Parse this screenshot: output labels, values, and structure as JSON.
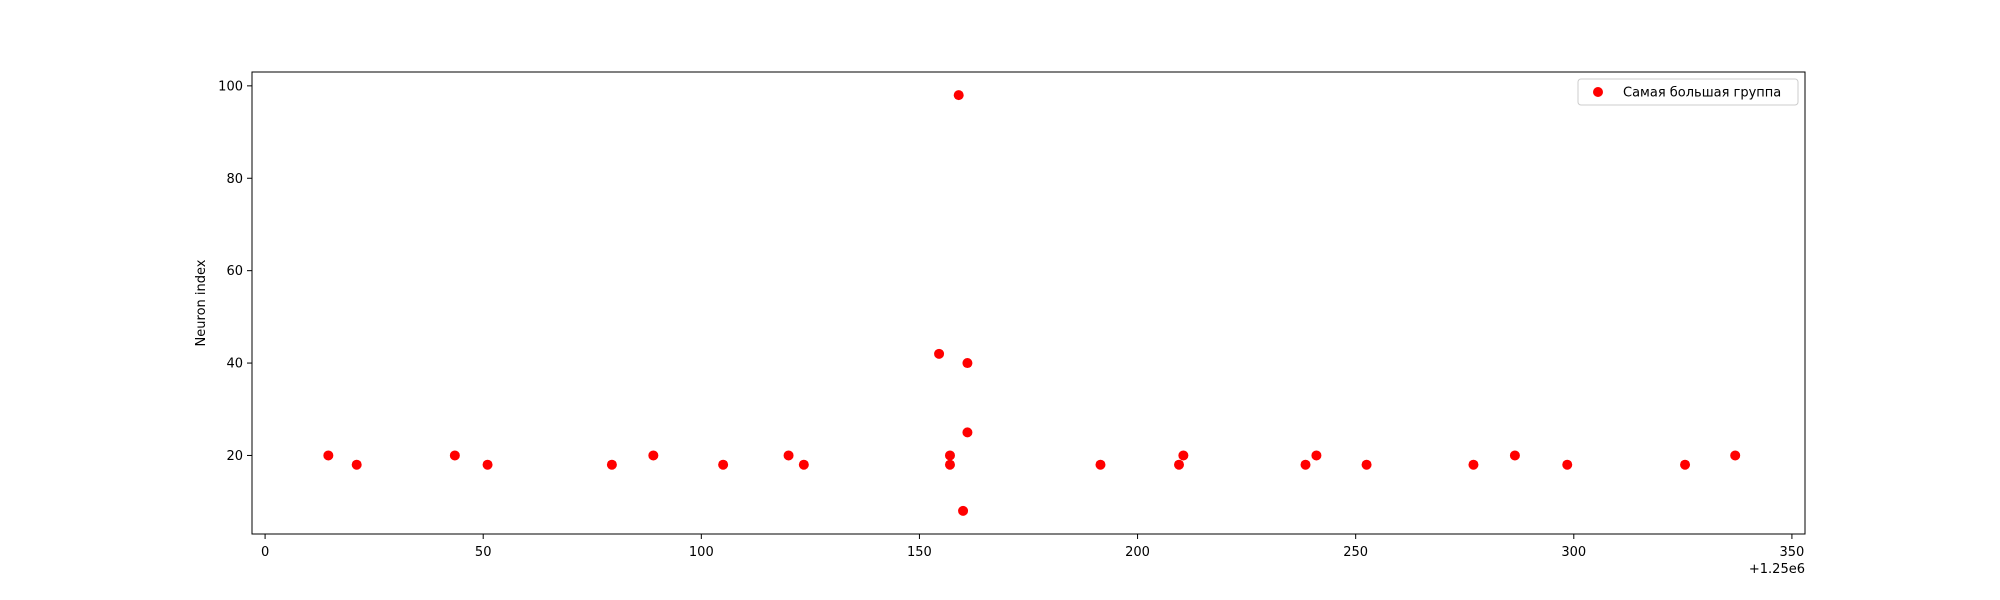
{
  "chart_data": {
    "type": "scatter",
    "title": "",
    "xlabel": "",
    "ylabel": "Neuron index",
    "x_offset_label": "+1.25e6",
    "xlim": [
      -3,
      353
    ],
    "ylim": [
      3,
      103
    ],
    "xticks": [
      0,
      50,
      100,
      150,
      200,
      250,
      300,
      350
    ],
    "yticks": [
      20,
      40,
      60,
      80,
      100
    ],
    "grid": false,
    "legend_position": "top-right",
    "series": [
      {
        "name": "Самая большая группа",
        "color": "#ff0000",
        "marker": "circle",
        "x": [
          14.5,
          21,
          43.5,
          51,
          79.5,
          89,
          105,
          120,
          123.5,
          154.5,
          157,
          157,
          159,
          160,
          161,
          161,
          191.5,
          209.5,
          210.5,
          238.5,
          241,
          252.5,
          277,
          286.5,
          298.5,
          325.5,
          337
        ],
        "y": [
          20,
          18,
          20,
          18,
          18,
          20,
          18,
          20,
          18,
          42,
          20,
          18,
          98,
          8,
          40,
          25,
          18,
          18,
          20,
          18,
          20,
          18,
          18,
          20,
          18,
          18,
          20
        ]
      }
    ]
  }
}
